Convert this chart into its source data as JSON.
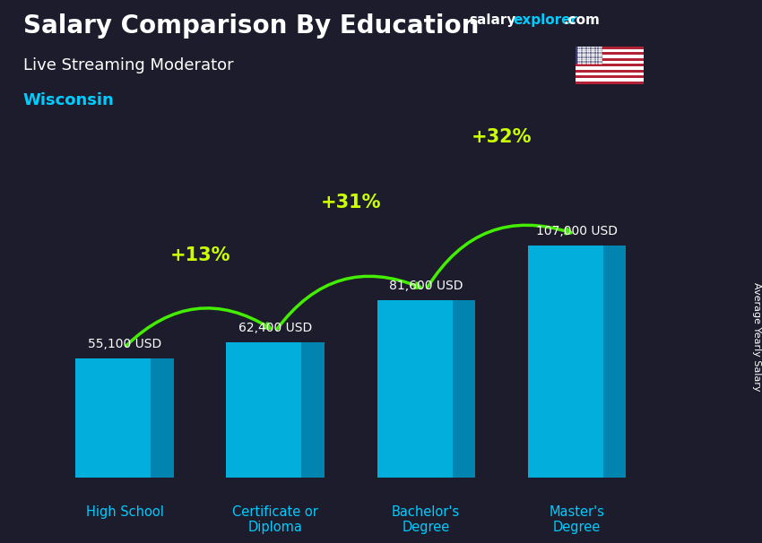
{
  "title": "Salary Comparison By Education",
  "subtitle": "Live Streaming Moderator",
  "location": "Wisconsin",
  "ylabel": "Average Yearly Salary",
  "categories": [
    "High School",
    "Certificate or\nDiploma",
    "Bachelor's\nDegree",
    "Master's\nDegree"
  ],
  "values": [
    55100,
    62400,
    81600,
    107000
  ],
  "labels": [
    "55,100 USD",
    "62,400 USD",
    "81,600 USD",
    "107,000 USD"
  ],
  "pct_changes": [
    "+13%",
    "+31%",
    "+32%"
  ],
  "face_color": "#00bfef",
  "side_color": "#0090c0",
  "top_color": "#55ddff",
  "background_color": "#1c1c2c",
  "title_color": "#ffffff",
  "subtitle_color": "#ffffff",
  "location_color": "#00ccff",
  "label_color": "#ffffff",
  "xlabel_color": "#00ccff",
  "pct_color": "#ccff00",
  "arrow_color": "#44ee00",
  "brand_color_salary": "#ffffff",
  "brand_color_explorer": "#00ccff",
  "brand_color_com": "#ffffff",
  "ylim": [
    0,
    130000
  ],
  "bar_width": 0.5,
  "depth": 0.15
}
